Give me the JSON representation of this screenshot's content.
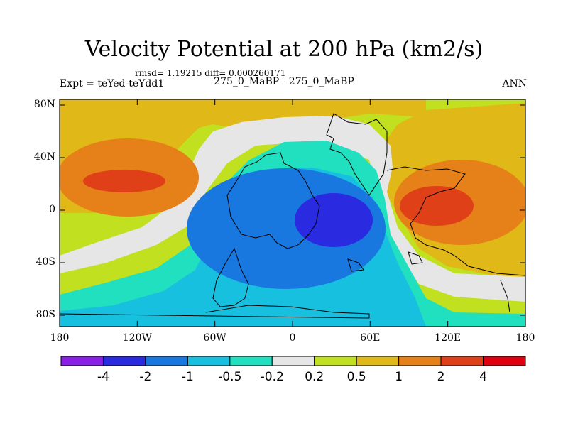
{
  "chart_data": {
    "type": "heatmap",
    "title": "Velocity Potential at 200 hPa (km2/s)",
    "rmsd_text": "rmsd= 1.19215 diff= 0.000260171",
    "experiment": "Expt = teYed-teYdd1",
    "subtitle": "275_0_MaBP - 275_0_MaBP",
    "season": "ANN",
    "x_ticks": [
      "180",
      "120W",
      "60W",
      "0",
      "60E",
      "120E",
      "180"
    ],
    "y_ticks": [
      "80N",
      "40N",
      "0",
      "40S",
      "80S"
    ],
    "xlim": [
      -180,
      180
    ],
    "ylim": [
      -90,
      90
    ],
    "colorbar": {
      "labels": [
        "-4",
        "-2",
        "-1",
        "-0.5",
        "-0.2",
        "0.2",
        "0.5",
        "1",
        "2",
        "4"
      ],
      "colors": [
        "#8a20e6",
        "#2a2ae0",
        "#1878e0",
        "#18c0e0",
        "#20e0c0",
        "#e6e6e6",
        "#c0e020",
        "#e0b818",
        "#e68018",
        "#e04018",
        "#e00010"
      ]
    },
    "fields": [
      {
        "name": "upper-left-positive-band",
        "level": "0.5",
        "region": "north-west",
        "color": "#e0b818"
      },
      {
        "name": "west-max-2",
        "level": "2",
        "center": [
          -138,
          24
        ],
        "color": "#e68018"
      },
      {
        "name": "west-max-4",
        "level": "4",
        "center": [
          -138,
          24
        ],
        "color": "#e04018"
      },
      {
        "name": "central-min-minus1",
        "level": "-1",
        "center": [
          -10,
          -10
        ],
        "color": "#1878e0"
      },
      {
        "name": "central-min-minus2",
        "level": "-2",
        "center": [
          33,
          -8
        ],
        "color": "#2a2ae0"
      },
      {
        "name": "east-max-2",
        "level": "2",
        "center": [
          120,
          5
        ],
        "color": "#e68018"
      },
      {
        "name": "east-max-4",
        "level": "4",
        "center": [
          115,
          2
        ],
        "color": "#e04018"
      }
    ]
  }
}
